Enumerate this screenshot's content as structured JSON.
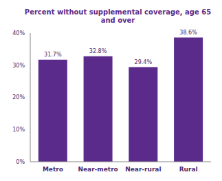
{
  "chart_data": {
    "type": "bar",
    "title": "Percent without supplemental coverage, age 65 and over",
    "categories": [
      "Metro",
      "Near-metro",
      "Near-rural",
      "Rural"
    ],
    "values": [
      31.7,
      32.8,
      29.4,
      38.6
    ],
    "value_labels": [
      "31.7%",
      "32.8%",
      "29.4%",
      "38.6%"
    ],
    "data_labels": true,
    "color": "#5a2b8a",
    "ylim": [
      0,
      40
    ],
    "yticks": [
      {
        "value": 0,
        "label": "0%"
      },
      {
        "value": 10,
        "label": "10%"
      },
      {
        "value": 20,
        "label": "20%"
      },
      {
        "value": 30,
        "label": "30%"
      },
      {
        "value": 40,
        "label": "40%"
      }
    ],
    "grid": false
  }
}
